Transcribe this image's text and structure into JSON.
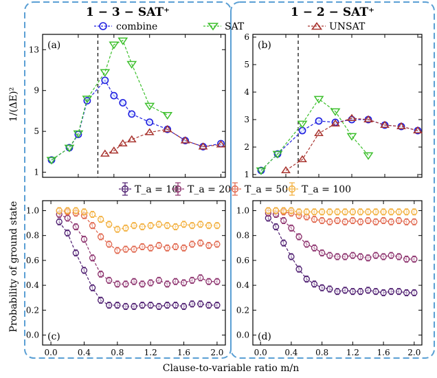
{
  "columns": [
    {
      "title": "1 − 3 − SAT⁺"
    },
    {
      "title": "1 − 2 − SAT⁺"
    }
  ],
  "top_legend": [
    {
      "label": "combine",
      "color": "#1f1fe0",
      "marker": "circle"
    },
    {
      "label": "SAT",
      "color": "#3bbf2b",
      "marker": "triangle-down"
    },
    {
      "label": "UNSAT",
      "color": "#a8332e",
      "marker": "triangle-up"
    }
  ],
  "bottom_legend": [
    {
      "label": "T_a = 10",
      "color": "#4b1a6e"
    },
    {
      "label": "T_a = 20",
      "color": "#8a2d6a"
    },
    {
      "label": "T_a = 50",
      "color": "#e0644a"
    },
    {
      "label": "T_a = 100",
      "color": "#f2ae3a"
    }
  ],
  "y_label_top": "1/(ΔE)²",
  "y_label_bottom": "Probability of ground state",
  "x_label": "Clause-to-variable ratio m/n",
  "chart_data": [
    {
      "panel": "(a)",
      "type": "line",
      "xlim": [
        0,
        2.05
      ],
      "ylim": [
        0.5,
        14.5
      ],
      "yticks": [
        1,
        5,
        9,
        13
      ],
      "xticks": [
        0.0,
        0.4,
        0.8,
        1.2,
        1.6,
        2.0
      ],
      "vline": 0.62,
      "series": [
        {
          "name": "combine",
          "x": [
            0.1,
            0.3,
            0.4,
            0.5,
            0.7,
            0.8,
            0.9,
            1.0,
            1.2,
            1.4,
            1.6,
            1.8,
            2.0
          ],
          "y": [
            2.2,
            3.4,
            4.7,
            8.0,
            10.0,
            8.5,
            7.8,
            6.7,
            5.9,
            5.2,
            4.1,
            3.5,
            3.8
          ]
        },
        {
          "name": "SAT",
          "x": [
            0.1,
            0.3,
            0.4,
            0.5,
            0.7,
            0.8,
            0.9,
            1.0,
            1.2,
            1.4
          ],
          "y": [
            2.2,
            3.4,
            4.8,
            8.2,
            10.8,
            13.5,
            13.9,
            11.6,
            7.5,
            6.6
          ]
        },
        {
          "name": "UNSAT",
          "x": [
            0.7,
            0.8,
            0.9,
            1.0,
            1.2,
            1.4,
            1.6,
            1.8,
            2.0
          ],
          "y": [
            2.8,
            3.1,
            3.8,
            4.2,
            4.9,
            5.2,
            4.1,
            3.5,
            3.7
          ]
        }
      ]
    },
    {
      "panel": "(b)",
      "type": "line",
      "xlim": [
        0,
        2.05
      ],
      "ylim": [
        0.9,
        6.1
      ],
      "yticks": [
        1,
        2,
        3,
        4,
        5,
        6
      ],
      "xticks": [
        0.0,
        0.4,
        0.8,
        1.2,
        1.6,
        2.0
      ],
      "vline": 0.55,
      "series": [
        {
          "name": "combine",
          "x": [
            0.1,
            0.3,
            0.6,
            0.8,
            1.0,
            1.2,
            1.4,
            1.6,
            1.8,
            2.0
          ],
          "y": [
            1.15,
            1.75,
            2.6,
            2.95,
            2.9,
            3.0,
            3.0,
            2.8,
            2.75,
            2.6
          ]
        },
        {
          "name": "SAT",
          "x": [
            0.1,
            0.3,
            0.6,
            0.8,
            1.0,
            1.2,
            1.4
          ],
          "y": [
            1.15,
            1.75,
            2.85,
            3.75,
            3.3,
            2.4,
            1.7
          ]
        },
        {
          "name": "UNSAT",
          "x": [
            0.4,
            0.6,
            0.8,
            1.0,
            1.2,
            1.4,
            1.6,
            1.8,
            2.0
          ],
          "y": [
            1.15,
            1.55,
            2.5,
            2.85,
            3.05,
            3.0,
            2.8,
            2.75,
            2.6
          ]
        }
      ]
    },
    {
      "panel": "(c)",
      "type": "line",
      "xlim": [
        -0.1,
        2.1
      ],
      "ylim": [
        -0.08,
        1.08
      ],
      "yticks": [
        0.0,
        0.2,
        0.4,
        0.6,
        0.8,
        1.0
      ],
      "xticks": [
        0.0,
        0.4,
        0.8,
        1.2,
        1.6,
        2.0
      ],
      "series": [
        {
          "name": "T_a = 10",
          "x": [
            0.1,
            0.2,
            0.3,
            0.4,
            0.5,
            0.6,
            0.7,
            0.8,
            0.9,
            1.0,
            1.1,
            1.2,
            1.3,
            1.4,
            1.5,
            1.6,
            1.7,
            1.8,
            1.9,
            2.0
          ],
          "y": [
            0.91,
            0.82,
            0.66,
            0.52,
            0.38,
            0.28,
            0.24,
            0.24,
            0.23,
            0.23,
            0.24,
            0.24,
            0.23,
            0.24,
            0.24,
            0.23,
            0.25,
            0.25,
            0.24,
            0.24
          ]
        },
        {
          "name": "T_a = 20",
          "x": [
            0.1,
            0.2,
            0.3,
            0.4,
            0.5,
            0.6,
            0.7,
            0.8,
            0.9,
            1.0,
            1.1,
            1.2,
            1.3,
            1.4,
            1.5,
            1.6,
            1.7,
            1.8,
            1.9,
            2.0
          ],
          "y": [
            0.97,
            0.94,
            0.87,
            0.77,
            0.62,
            0.49,
            0.44,
            0.41,
            0.41,
            0.43,
            0.41,
            0.42,
            0.44,
            0.41,
            0.43,
            0.42,
            0.44,
            0.46,
            0.43,
            0.43
          ]
        },
        {
          "name": "T_a = 50",
          "x": [
            0.1,
            0.2,
            0.3,
            0.4,
            0.5,
            0.6,
            0.7,
            0.8,
            0.9,
            1.0,
            1.1,
            1.2,
            1.3,
            1.4,
            1.5,
            1.6,
            1.7,
            1.8,
            1.9,
            2.0
          ],
          "y": [
            1.0,
            0.99,
            0.98,
            0.96,
            0.88,
            0.79,
            0.73,
            0.68,
            0.69,
            0.69,
            0.71,
            0.7,
            0.72,
            0.7,
            0.71,
            0.7,
            0.73,
            0.74,
            0.72,
            0.73
          ]
        },
        {
          "name": "T_a = 100",
          "x": [
            0.1,
            0.2,
            0.3,
            0.4,
            0.5,
            0.6,
            0.7,
            0.8,
            0.9,
            1.0,
            1.1,
            1.2,
            1.3,
            1.4,
            1.5,
            1.6,
            1.7,
            1.8,
            1.9,
            2.0
          ],
          "y": [
            1.0,
            1.0,
            1.0,
            0.99,
            0.97,
            0.93,
            0.89,
            0.85,
            0.86,
            0.88,
            0.87,
            0.88,
            0.89,
            0.88,
            0.87,
            0.89,
            0.88,
            0.89,
            0.88,
            0.88
          ]
        }
      ]
    },
    {
      "panel": "(d)",
      "type": "line",
      "xlim": [
        -0.1,
        2.1
      ],
      "ylim": [
        -0.08,
        1.08
      ],
      "yticks": [
        0.0,
        0.2,
        0.4,
        0.6,
        0.8,
        1.0
      ],
      "xticks": [
        0.0,
        0.4,
        0.8,
        1.2,
        1.6,
        2.0
      ],
      "series": [
        {
          "name": "T_a = 10",
          "x": [
            0.1,
            0.2,
            0.3,
            0.4,
            0.5,
            0.6,
            0.7,
            0.8,
            0.9,
            1.0,
            1.1,
            1.2,
            1.3,
            1.4,
            1.5,
            1.6,
            1.7,
            1.8,
            1.9,
            2.0
          ],
          "y": [
            0.94,
            0.87,
            0.74,
            0.63,
            0.53,
            0.45,
            0.41,
            0.38,
            0.37,
            0.35,
            0.36,
            0.35,
            0.35,
            0.36,
            0.35,
            0.34,
            0.35,
            0.35,
            0.34,
            0.34
          ]
        },
        {
          "name": "T_a = 20",
          "x": [
            0.1,
            0.2,
            0.3,
            0.4,
            0.5,
            0.6,
            0.7,
            0.8,
            0.9,
            1.0,
            1.1,
            1.2,
            1.3,
            1.4,
            1.5,
            1.6,
            1.7,
            1.8,
            1.9,
            2.0
          ],
          "y": [
            0.98,
            0.97,
            0.92,
            0.86,
            0.79,
            0.73,
            0.7,
            0.66,
            0.64,
            0.63,
            0.63,
            0.64,
            0.63,
            0.62,
            0.64,
            0.63,
            0.64,
            0.63,
            0.61,
            0.61
          ]
        },
        {
          "name": "T_a = 50",
          "x": [
            0.1,
            0.2,
            0.3,
            0.4,
            0.5,
            0.6,
            0.7,
            0.8,
            0.9,
            1.0,
            1.1,
            1.2,
            1.3,
            1.4,
            1.5,
            1.6,
            1.7,
            1.8,
            1.9,
            2.0
          ],
          "y": [
            1.0,
            1.0,
            0.99,
            0.98,
            0.96,
            0.95,
            0.93,
            0.92,
            0.91,
            0.92,
            0.91,
            0.92,
            0.91,
            0.92,
            0.91,
            0.92,
            0.91,
            0.92,
            0.91,
            0.91
          ]
        },
        {
          "name": "T_a = 100",
          "x": [
            0.1,
            0.2,
            0.3,
            0.4,
            0.5,
            0.6,
            0.7,
            0.8,
            0.9,
            1.0,
            1.1,
            1.2,
            1.3,
            1.4,
            1.5,
            1.6,
            1.7,
            1.8,
            1.9,
            2.0
          ],
          "y": [
            1.0,
            1.0,
            1.0,
            1.0,
            0.99,
            0.99,
            0.99,
            0.99,
            0.99,
            0.99,
            0.99,
            0.99,
            0.99,
            0.99,
            0.99,
            0.99,
            0.99,
            0.99,
            0.99,
            0.99
          ]
        }
      ]
    }
  ]
}
